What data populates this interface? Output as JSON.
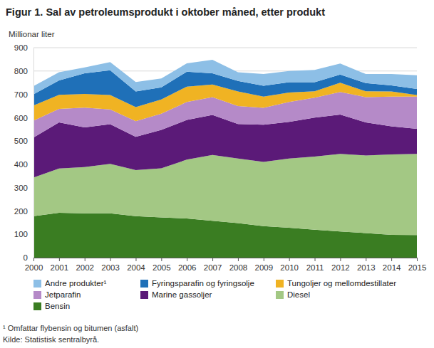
{
  "chart_data": {
    "type": "area",
    "stacked": true,
    "title": "Figur 1. Sal av petroleumsprodukt i oktober måned, etter produkt",
    "y_label": "Millionar liter",
    "footnote": "¹ Omfattar flybensin og bitumen (asfalt)",
    "source": "Kilde: Statistisk sentralbyrå.",
    "x": [
      2000,
      2001,
      2002,
      2003,
      2004,
      2005,
      2006,
      2007,
      2008,
      2009,
      2010,
      2011,
      2012,
      2013,
      2014,
      2015
    ],
    "xlim": [
      2000,
      2015
    ],
    "xticks": [
      2000,
      2001,
      2002,
      2003,
      2004,
      2005,
      2006,
      2007,
      2008,
      2009,
      2010,
      2011,
      2012,
      2013,
      2014,
      2015
    ],
    "ylim": [
      0,
      900
    ],
    "yticks": [
      0,
      100,
      200,
      300,
      400,
      500,
      600,
      700,
      800,
      900
    ],
    "grid": true,
    "legend": "bottom",
    "series": [
      {
        "name": "Bensin",
        "color": "#3a7d22",
        "values": [
          178,
          192,
          190,
          190,
          178,
          172,
          168,
          158,
          148,
          135,
          128,
          120,
          112,
          105,
          98,
          97
        ]
      },
      {
        "name": "Diesel",
        "color": "#a3c884",
        "values": [
          165,
          190,
          198,
          212,
          197,
          211,
          252,
          282,
          277,
          275,
          297,
          313,
          333,
          333,
          344,
          348
        ]
      },
      {
        "name": "Marine gassoljer",
        "color": "#5b1a78",
        "values": [
          172,
          198,
          170,
          170,
          143,
          165,
          170,
          172,
          148,
          160,
          157,
          167,
          168,
          142,
          121,
          107
        ]
      },
      {
        "name": "Jetparafin",
        "color": "#b58ac8",
        "values": [
          72,
          58,
          85,
          63,
          67,
          69,
          77,
          76,
          77,
          72,
          85,
          86,
          97,
          108,
          127,
          138
        ]
      },
      {
        "name": "Tungoljer og mellomdestillater",
        "color": "#f0b323",
        "values": [
          65,
          60,
          59,
          62,
          60,
          61,
          66,
          54,
          62,
          48,
          41,
          27,
          40,
          25,
          22,
          7
        ]
      },
      {
        "name": "Fyringsparafin og fyringsolje",
        "color": "#1f70b8",
        "values": [
          48,
          62,
          88,
          106,
          67,
          52,
          64,
          48,
          45,
          47,
          44,
          39,
          35,
          35,
          26,
          26
        ]
      },
      {
        "name": "Andre produkter¹",
        "color": "#8dbfe6",
        "values": [
          35,
          35,
          25,
          35,
          41,
          38,
          36,
          58,
          38,
          50,
          48,
          53,
          47,
          39,
          49,
          59
        ]
      }
    ]
  }
}
